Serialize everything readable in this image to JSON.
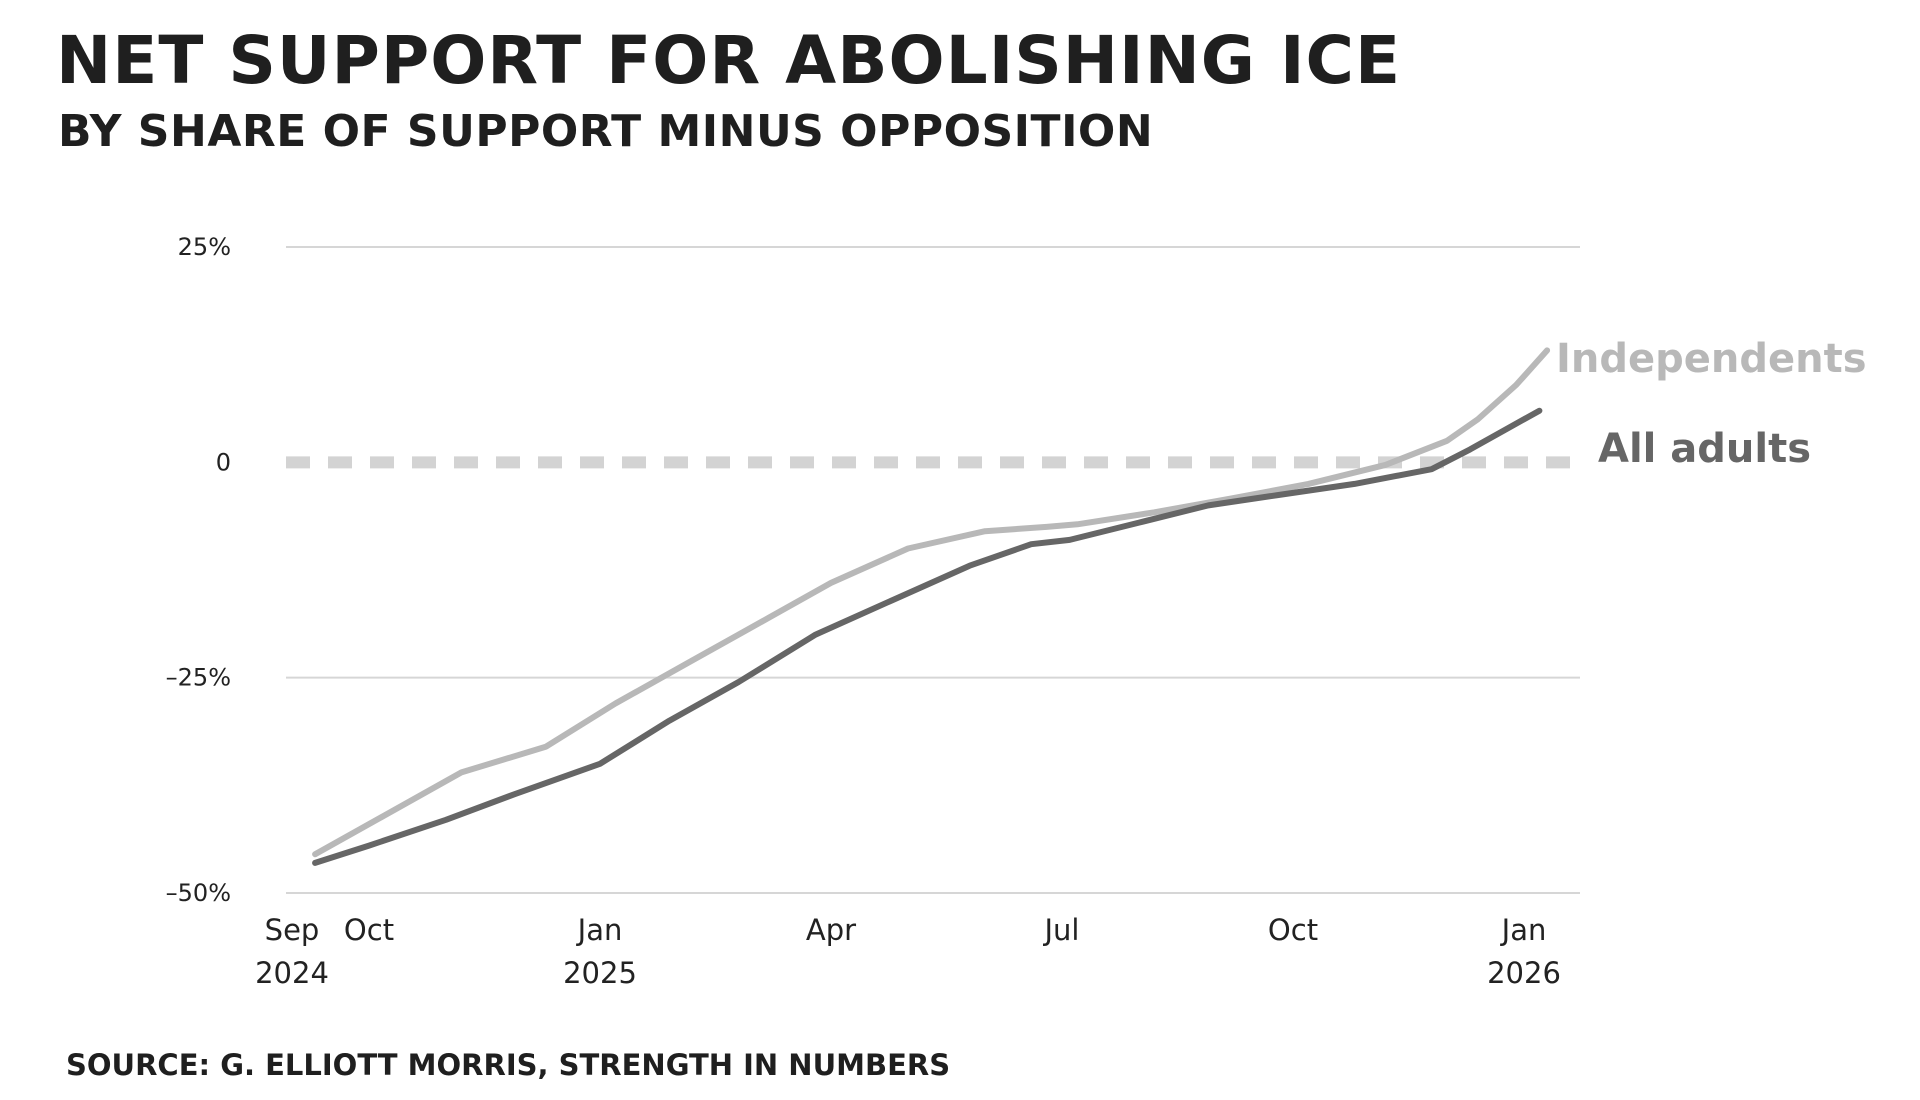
{
  "chart_data": {
    "type": "line",
    "title": "NET SUPPORT FOR ABOLISHING ICE",
    "subtitle": "BY SHARE OF SUPPORT MINUS OPPOSITION",
    "source": "SOURCE: G. ELLIOTT MORRIS, STRENGTH IN NUMBERS",
    "xlabel": "",
    "ylabel": "",
    "ylim": [
      -50,
      25
    ],
    "xlim": [
      0,
      16.5
    ],
    "y_ticks": [
      {
        "value": 25,
        "label": "25%"
      },
      {
        "value": 0,
        "label": "0"
      },
      {
        "value": -25,
        "label": "–25%"
      },
      {
        "value": -50,
        "label": "–50%"
      }
    ],
    "x_ticks": [
      {
        "value": 0,
        "line1": "Sep",
        "line2": "2024"
      },
      {
        "value": 1,
        "line1": "Oct",
        "line2": ""
      },
      {
        "value": 4,
        "line1": "Jan",
        "line2": "2025"
      },
      {
        "value": 7,
        "line1": "Apr",
        "line2": ""
      },
      {
        "value": 10,
        "line1": "Jul",
        "line2": ""
      },
      {
        "value": 13,
        "line1": "Oct",
        "line2": ""
      },
      {
        "value": 16,
        "line1": "Jan",
        "line2": "2026"
      }
    ],
    "reference_line": {
      "value": 0,
      "style": "dashed"
    },
    "series": [
      {
        "name": "Independents",
        "color": "#b8b8b8",
        "x": [
          0.3,
          1.2,
          2.2,
          3.3,
          4.2,
          5.2,
          6.2,
          7.0,
          8.0,
          9.0,
          9.8,
          10.2,
          11.2,
          12.2,
          13.2,
          14.2,
          15.0,
          15.4,
          15.9,
          16.3
        ],
        "y": [
          -45.5,
          -41,
          -36,
          -33,
          -28,
          -23,
          -18,
          -14,
          -10,
          -8,
          -7.5,
          -7.2,
          -5.8,
          -4.2,
          -2.5,
          -0.3,
          2.5,
          5,
          9,
          13
        ]
      },
      {
        "name": "All adults",
        "color": "#666666",
        "x": [
          0.3,
          1.0,
          2.0,
          2.9,
          4.0,
          4.9,
          5.8,
          6.8,
          7.8,
          8.8,
          9.6,
          10.1,
          11.0,
          11.9,
          12.8,
          13.8,
          14.8,
          15.3,
          15.8,
          16.2
        ],
        "y": [
          -46.5,
          -44.5,
          -41.5,
          -38.5,
          -35,
          -30,
          -25.5,
          -20,
          -16,
          -12,
          -9.5,
          -9,
          -7,
          -5,
          -3.8,
          -2.5,
          -0.8,
          1.5,
          4,
          6
        ]
      }
    ]
  }
}
